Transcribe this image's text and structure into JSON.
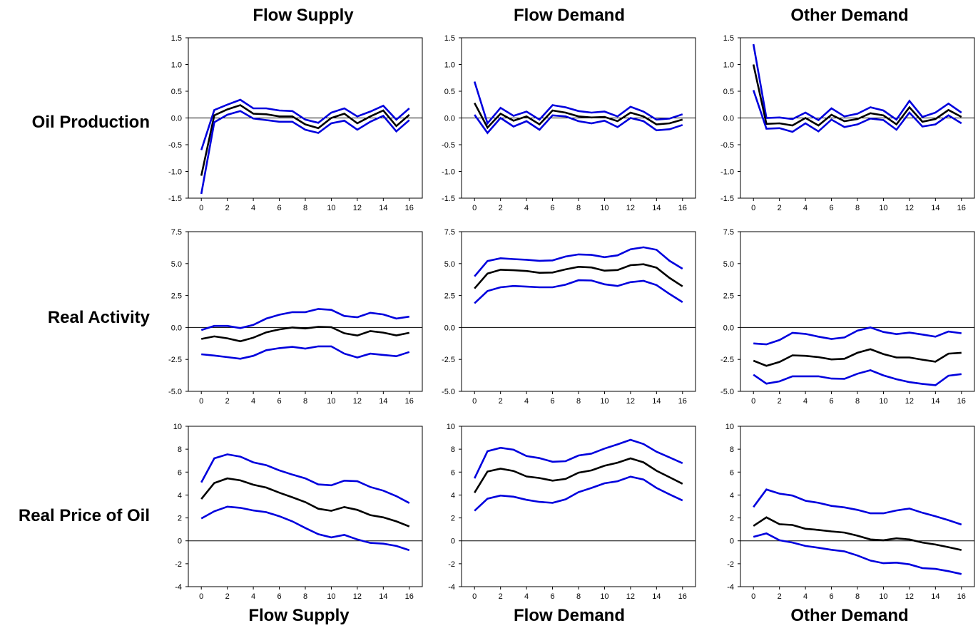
{
  "column_titles_top": [
    "Flow Supply",
    "Flow Demand",
    "Other Demand"
  ],
  "column_titles_bottom": [
    "Flow Supply",
    "Flow Demand",
    "Other Demand"
  ],
  "row_labels": [
    "Oil Production",
    "Real Activity",
    "Real Price of Oil"
  ],
  "colors": {
    "estimate": "#000000",
    "band": "#0000dd",
    "axes": "#000000"
  },
  "chart_data": [
    {
      "type": "line",
      "row": "Oil Production",
      "column": "Flow Supply",
      "x": [
        0,
        1,
        2,
        3,
        4,
        5,
        6,
        7,
        8,
        9,
        10,
        11,
        12,
        13,
        14,
        15,
        16
      ],
      "xticks": [
        0,
        2,
        4,
        6,
        8,
        10,
        12,
        14,
        16
      ],
      "xlim": [
        -1,
        17
      ],
      "yticks": [
        "-1.5",
        "-1.0",
        "-0.5",
        "0.0",
        "0.5",
        "1.0",
        "1.5"
      ],
      "ylim": [
        -1.5,
        1.5
      ],
      "zero_line": true,
      "series": [
        {
          "role": "upper",
          "values": [
            -0.6,
            0.15,
            0.25,
            0.34,
            0.18,
            0.18,
            0.14,
            0.13,
            -0.03,
            -0.09,
            0.1,
            0.18,
            0.03,
            0.12,
            0.23,
            -0.03,
            0.18
          ]
        },
        {
          "role": "estimate",
          "values": [
            -1.08,
            0.05,
            0.16,
            0.24,
            0.08,
            0.07,
            0.03,
            0.03,
            -0.12,
            -0.19,
            0.0,
            0.08,
            -0.1,
            0.03,
            0.14,
            -0.15,
            0.06
          ]
        },
        {
          "role": "lower",
          "values": [
            -1.42,
            -0.08,
            0.06,
            0.13,
            -0.01,
            -0.04,
            -0.07,
            -0.07,
            -0.22,
            -0.28,
            -0.1,
            -0.05,
            -0.22,
            -0.07,
            0.04,
            -0.25,
            -0.04
          ]
        }
      ]
    },
    {
      "type": "line",
      "row": "Oil Production",
      "column": "Flow Demand",
      "x": [
        0,
        1,
        2,
        3,
        4,
        5,
        6,
        7,
        8,
        9,
        10,
        11,
        12,
        13,
        14,
        15,
        16
      ],
      "xticks": [
        0,
        2,
        4,
        6,
        8,
        10,
        12,
        14,
        16
      ],
      "xlim": [
        -1,
        17
      ],
      "yticks": [
        "-1.5",
        "-1.0",
        "-0.5",
        "0.0",
        "0.5",
        "1.0",
        "1.5"
      ],
      "ylim": [
        -1.5,
        1.5
      ],
      "zero_line": true,
      "series": [
        {
          "role": "upper",
          "values": [
            0.68,
            -0.1,
            0.19,
            0.04,
            0.12,
            -0.03,
            0.24,
            0.2,
            0.13,
            0.1,
            0.12,
            0.03,
            0.21,
            0.12,
            -0.03,
            -0.01,
            0.07
          ]
        },
        {
          "role": "estimate",
          "values": [
            0.28,
            -0.18,
            0.08,
            -0.05,
            0.03,
            -0.12,
            0.14,
            0.1,
            0.03,
            0.01,
            0.02,
            -0.06,
            0.1,
            0.03,
            -0.12,
            -0.1,
            -0.03
          ]
        },
        {
          "role": "lower",
          "values": [
            0.06,
            -0.28,
            0.0,
            -0.16,
            -0.06,
            -0.22,
            0.05,
            0.03,
            -0.06,
            -0.1,
            -0.05,
            -0.17,
            0.0,
            -0.06,
            -0.23,
            -0.21,
            -0.13
          ]
        }
      ]
    },
    {
      "type": "line",
      "row": "Oil Production",
      "column": "Other Demand",
      "x": [
        0,
        1,
        2,
        3,
        4,
        5,
        6,
        7,
        8,
        9,
        10,
        11,
        12,
        13,
        14,
        15,
        16
      ],
      "xticks": [
        0,
        2,
        4,
        6,
        8,
        10,
        12,
        14,
        16
      ],
      "xlim": [
        -1,
        17
      ],
      "yticks": [
        "-1.5",
        "-1.0",
        "-0.5",
        "0.0",
        "0.5",
        "1.0",
        "1.5"
      ],
      "ylim": [
        -1.5,
        1.5
      ],
      "zero_line": true,
      "series": [
        {
          "role": "upper",
          "values": [
            1.38,
            0.0,
            0.01,
            -0.02,
            0.1,
            -0.04,
            0.18,
            0.03,
            0.08,
            0.2,
            0.14,
            -0.03,
            0.32,
            0.02,
            0.1,
            0.27,
            0.1
          ]
        },
        {
          "role": "estimate",
          "values": [
            1.0,
            -0.11,
            -0.1,
            -0.14,
            0.0,
            -0.14,
            0.06,
            -0.06,
            -0.02,
            0.09,
            0.05,
            -0.12,
            0.2,
            -0.07,
            -0.02,
            0.15,
            0.02
          ]
        },
        {
          "role": "lower",
          "values": [
            0.52,
            -0.2,
            -0.19,
            -0.26,
            -0.1,
            -0.25,
            -0.03,
            -0.17,
            -0.12,
            -0.01,
            -0.04,
            -0.22,
            0.1,
            -0.16,
            -0.12,
            0.05,
            -0.1
          ]
        }
      ]
    },
    {
      "type": "line",
      "row": "Real Activity",
      "column": "Flow Supply",
      "x": [
        0,
        1,
        2,
        3,
        4,
        5,
        6,
        7,
        8,
        9,
        10,
        11,
        12,
        13,
        14,
        15,
        16
      ],
      "xticks": [
        0,
        2,
        4,
        6,
        8,
        10,
        12,
        14,
        16
      ],
      "xlim": [
        -1,
        17
      ],
      "yticks": [
        "-5.0",
        "-2.5",
        "0.0",
        "2.5",
        "5.0",
        "7.5"
      ],
      "ylim": [
        -5,
        7.5
      ],
      "zero_line": true,
      "series": [
        {
          "role": "upper",
          "values": [
            -0.2,
            0.12,
            0.12,
            -0.05,
            0.2,
            0.7,
            1.0,
            1.2,
            1.2,
            1.45,
            1.38,
            0.9,
            0.8,
            1.15,
            1.02,
            0.7,
            0.85
          ]
        },
        {
          "role": "estimate",
          "values": [
            -0.9,
            -0.7,
            -0.85,
            -1.08,
            -0.8,
            -0.38,
            -0.15,
            0.0,
            -0.08,
            0.05,
            0.02,
            -0.45,
            -0.63,
            -0.28,
            -0.4,
            -0.62,
            -0.42
          ]
        },
        {
          "role": "lower",
          "values": [
            -2.1,
            -2.2,
            -2.32,
            -2.45,
            -2.22,
            -1.78,
            -1.62,
            -1.52,
            -1.65,
            -1.48,
            -1.48,
            -2.05,
            -2.35,
            -2.05,
            -2.15,
            -2.25,
            -1.92
          ]
        }
      ]
    },
    {
      "type": "line",
      "row": "Real Activity",
      "column": "Flow Demand",
      "x": [
        0,
        1,
        2,
        3,
        4,
        5,
        6,
        7,
        8,
        9,
        10,
        11,
        12,
        13,
        14,
        15,
        16
      ],
      "xticks": [
        0,
        2,
        4,
        6,
        8,
        10,
        12,
        14,
        16
      ],
      "xlim": [
        -1,
        17
      ],
      "yticks": [
        "-5.0",
        "-2.5",
        "0.0",
        "2.5",
        "5.0",
        "7.5"
      ],
      "ylim": [
        -5,
        7.5
      ],
      "zero_line": true,
      "series": [
        {
          "role": "upper",
          "values": [
            4.0,
            5.2,
            5.42,
            5.35,
            5.3,
            5.22,
            5.25,
            5.55,
            5.72,
            5.68,
            5.5,
            5.65,
            6.12,
            6.28,
            6.08,
            5.22,
            4.6
          ]
        },
        {
          "role": "estimate",
          "values": [
            3.05,
            4.22,
            4.52,
            4.48,
            4.42,
            4.28,
            4.3,
            4.55,
            4.75,
            4.7,
            4.45,
            4.5,
            4.88,
            4.95,
            4.68,
            3.88,
            3.22
          ]
        },
        {
          "role": "lower",
          "values": [
            1.9,
            2.85,
            3.15,
            3.25,
            3.2,
            3.15,
            3.15,
            3.35,
            3.7,
            3.68,
            3.38,
            3.25,
            3.55,
            3.65,
            3.32,
            2.62,
            1.98
          ]
        }
      ]
    },
    {
      "type": "line",
      "row": "Real Activity",
      "column": "Other Demand",
      "x": [
        0,
        1,
        2,
        3,
        4,
        5,
        6,
        7,
        8,
        9,
        10,
        11,
        12,
        13,
        14,
        15,
        16
      ],
      "xticks": [
        0,
        2,
        4,
        6,
        8,
        10,
        12,
        14,
        16
      ],
      "xlim": [
        -1,
        17
      ],
      "yticks": [
        "-5.0",
        "-2.5",
        "0.0",
        "2.5",
        "5.0",
        "7.5"
      ],
      "ylim": [
        -5,
        7.5
      ],
      "zero_line": true,
      "series": [
        {
          "role": "upper",
          "values": [
            -1.25,
            -1.32,
            -0.98,
            -0.42,
            -0.5,
            -0.72,
            -0.9,
            -0.78,
            -0.25,
            0.0,
            -0.35,
            -0.52,
            -0.4,
            -0.55,
            -0.72,
            -0.32,
            -0.45
          ]
        },
        {
          "role": "estimate",
          "values": [
            -2.6,
            -3.0,
            -2.7,
            -2.18,
            -2.22,
            -2.32,
            -2.5,
            -2.45,
            -1.98,
            -1.7,
            -2.08,
            -2.35,
            -2.35,
            -2.52,
            -2.68,
            -2.05,
            -1.98
          ]
        },
        {
          "role": "lower",
          "values": [
            -3.7,
            -4.4,
            -4.22,
            -3.82,
            -3.82,
            -3.82,
            -4.0,
            -4.02,
            -3.62,
            -3.35,
            -3.75,
            -4.05,
            -4.28,
            -4.42,
            -4.52,
            -3.78,
            -3.65
          ]
        }
      ]
    },
    {
      "type": "line",
      "row": "Real Price of Oil",
      "column": "Flow Supply",
      "x": [
        0,
        1,
        2,
        3,
        4,
        5,
        6,
        7,
        8,
        9,
        10,
        11,
        12,
        13,
        14,
        15,
        16
      ],
      "xticks": [
        0,
        2,
        4,
        6,
        8,
        10,
        12,
        14,
        16
      ],
      "xlim": [
        -1,
        17
      ],
      "yticks": [
        "-4",
        "-2",
        "0",
        "2",
        "4",
        "6",
        "8",
        "10"
      ],
      "ylim": [
        -4,
        10
      ],
      "zero_line": true,
      "series": [
        {
          "role": "upper",
          "values": [
            5.1,
            7.2,
            7.55,
            7.35,
            6.85,
            6.6,
            6.15,
            5.78,
            5.45,
            4.92,
            4.85,
            5.25,
            5.2,
            4.7,
            4.38,
            3.9,
            3.3
          ]
        },
        {
          "role": "estimate",
          "values": [
            3.65,
            5.05,
            5.45,
            5.28,
            4.9,
            4.65,
            4.2,
            3.8,
            3.38,
            2.8,
            2.62,
            2.95,
            2.7,
            2.25,
            2.05,
            1.7,
            1.25
          ]
        },
        {
          "role": "lower",
          "values": [
            1.95,
            2.58,
            2.98,
            2.88,
            2.65,
            2.5,
            2.15,
            1.7,
            1.12,
            0.58,
            0.3,
            0.52,
            0.12,
            -0.18,
            -0.25,
            -0.45,
            -0.82
          ]
        }
      ]
    },
    {
      "type": "line",
      "row": "Real Price of Oil",
      "column": "Flow Demand",
      "x": [
        0,
        1,
        2,
        3,
        4,
        5,
        6,
        7,
        8,
        9,
        10,
        11,
        12,
        13,
        14,
        15,
        16
      ],
      "xticks": [
        0,
        2,
        4,
        6,
        8,
        10,
        12,
        14,
        16
      ],
      "xlim": [
        -1,
        17
      ],
      "yticks": [
        "-4",
        "-2",
        "0",
        "2",
        "4",
        "6",
        "8",
        "10"
      ],
      "ylim": [
        -4,
        10
      ],
      "zero_line": true,
      "series": [
        {
          "role": "upper",
          "values": [
            5.45,
            7.82,
            8.12,
            7.95,
            7.4,
            7.22,
            6.9,
            6.95,
            7.45,
            7.62,
            8.05,
            8.42,
            8.82,
            8.45,
            7.78,
            7.28,
            6.78
          ]
        },
        {
          "role": "estimate",
          "values": [
            4.2,
            6.05,
            6.3,
            6.1,
            5.62,
            5.48,
            5.25,
            5.4,
            5.95,
            6.15,
            6.55,
            6.82,
            7.2,
            6.85,
            6.12,
            5.55,
            4.98
          ]
        },
        {
          "role": "lower",
          "values": [
            2.62,
            3.68,
            3.95,
            3.85,
            3.58,
            3.4,
            3.32,
            3.62,
            4.25,
            4.62,
            5.02,
            5.2,
            5.6,
            5.35,
            4.62,
            4.05,
            3.52
          ]
        }
      ]
    },
    {
      "type": "line",
      "row": "Real Price of Oil",
      "column": "Other Demand",
      "x": [
        0,
        1,
        2,
        3,
        4,
        5,
        6,
        7,
        8,
        9,
        10,
        11,
        12,
        13,
        14,
        15,
        16
      ],
      "xticks": [
        0,
        2,
        4,
        6,
        8,
        10,
        12,
        14,
        16
      ],
      "xlim": [
        -1,
        17
      ],
      "yticks": [
        "-4",
        "-2",
        "0",
        "2",
        "4",
        "6",
        "8",
        "10"
      ],
      "ylim": [
        -4,
        10
      ],
      "zero_line": true,
      "series": [
        {
          "role": "upper",
          "values": [
            2.95,
            4.48,
            4.12,
            3.95,
            3.5,
            3.32,
            3.05,
            2.92,
            2.7,
            2.4,
            2.4,
            2.65,
            2.82,
            2.45,
            2.15,
            1.8,
            1.42
          ]
        },
        {
          "role": "estimate",
          "values": [
            1.3,
            2.05,
            1.45,
            1.38,
            1.05,
            0.95,
            0.82,
            0.72,
            0.45,
            0.12,
            0.05,
            0.22,
            0.12,
            -0.15,
            -0.32,
            -0.55,
            -0.8
          ]
        },
        {
          "role": "lower",
          "values": [
            0.35,
            0.65,
            0.05,
            -0.15,
            -0.45,
            -0.6,
            -0.78,
            -0.92,
            -1.28,
            -1.72,
            -1.95,
            -1.9,
            -2.05,
            -2.38,
            -2.45,
            -2.65,
            -2.9
          ]
        }
      ]
    }
  ]
}
